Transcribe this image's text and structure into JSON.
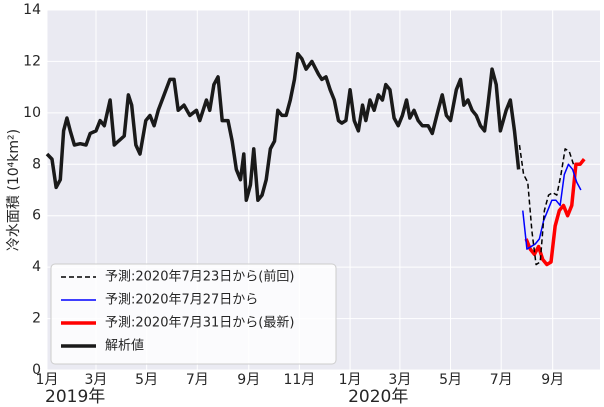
{
  "chart_data": {
    "type": "line",
    "ylabel": "冷水面積 (10⁴km²)",
    "xlim": [
      "2019-01-01",
      "2020-10-28"
    ],
    "xticks": [
      {
        "value": "2019-01-01",
        "label": "1月"
      },
      {
        "value": "2019-03-01",
        "label": "3月"
      },
      {
        "value": "2019-05-01",
        "label": "5月"
      },
      {
        "value": "2019-07-01",
        "label": "7月"
      },
      {
        "value": "2019-09-01",
        "label": "9月"
      },
      {
        "value": "2019-11-01",
        "label": "11月"
      },
      {
        "value": "2020-01-01",
        "label": "1月"
      },
      {
        "value": "2020-03-01",
        "label": "3月"
      },
      {
        "value": "2020-05-01",
        "label": "5月"
      },
      {
        "value": "2020-07-01",
        "label": "7月"
      },
      {
        "value": "2020-09-01",
        "label": "9月"
      }
    ],
    "year_labels": [
      {
        "value": "2019-01-01",
        "label": "2019年"
      },
      {
        "value": "2020-01-01",
        "label": "2020年"
      }
    ],
    "ylim": [
      0,
      14
    ],
    "yticks": [
      0,
      2,
      4,
      6,
      8,
      10,
      12,
      14
    ],
    "grid": true,
    "legend": "lower left",
    "series": [
      {
        "name": "予測:2020年7月23日から(前回)",
        "color": "#000000",
        "style": "dashed",
        "width": 1.5,
        "x": [
          "2020-07-23",
          "2020-07-28",
          "2020-08-02",
          "2020-08-07",
          "2020-08-12",
          "2020-08-17",
          "2020-08-22",
          "2020-08-27",
          "2020-09-01",
          "2020-09-06",
          "2020-09-11",
          "2020-09-16",
          "2020-09-21",
          "2020-09-26"
        ],
        "values": [
          8.75,
          7.6,
          7.3,
          5.4,
          4.1,
          4.2,
          6.2,
          6.8,
          6.9,
          6.8,
          7.6,
          8.6,
          8.5,
          8.0
        ]
      },
      {
        "name": "予測:2020年7月27日から",
        "color": "#0000ff",
        "style": "solid",
        "width": 1.5,
        "x": [
          "2020-07-27",
          "2020-08-01",
          "2020-08-06",
          "2020-08-11",
          "2020-08-16",
          "2020-08-21",
          "2020-08-26",
          "2020-08-31",
          "2020-09-05",
          "2020-09-10",
          "2020-09-15",
          "2020-09-20",
          "2020-09-25",
          "2020-09-30",
          "2020-10-05"
        ],
        "values": [
          6.2,
          4.7,
          4.8,
          4.9,
          5.1,
          5.8,
          6.2,
          6.6,
          6.6,
          6.4,
          7.6,
          8.0,
          7.8,
          7.3,
          7.0
        ]
      },
      {
        "name": "予測:2020年7月31日から(最新)",
        "color": "#ff0000",
        "style": "solid",
        "width": 3.5,
        "x": [
          "2020-07-31",
          "2020-08-05",
          "2020-08-10",
          "2020-08-15",
          "2020-08-20",
          "2020-08-25",
          "2020-08-30",
          "2020-09-04",
          "2020-09-09",
          "2020-09-14",
          "2020-09-19",
          "2020-09-24",
          "2020-09-29",
          "2020-10-04",
          "2020-10-09"
        ],
        "values": [
          5.1,
          4.7,
          4.5,
          4.8,
          4.3,
          4.1,
          4.2,
          5.6,
          6.2,
          6.4,
          6.0,
          6.4,
          8.0,
          8.0,
          8.2
        ]
      },
      {
        "name": "解析値",
        "color": "#1a1a1a",
        "style": "solid",
        "width": 3.5,
        "x": [
          "2019-01-01",
          "2019-01-07",
          "2019-01-12",
          "2019-01-17",
          "2019-01-21",
          "2019-01-25",
          "2019-01-29",
          "2019-02-03",
          "2019-02-10",
          "2019-02-17",
          "2019-02-22",
          "2019-03-01",
          "2019-03-06",
          "2019-03-11",
          "2019-03-18",
          "2019-03-23",
          "2019-03-28",
          "2019-04-04",
          "2019-04-09",
          "2019-04-13",
          "2019-04-18",
          "2019-04-23",
          "2019-04-30",
          "2019-05-05",
          "2019-05-10",
          "2019-05-15",
          "2019-05-22",
          "2019-05-29",
          "2019-06-03",
          "2019-06-08",
          "2019-06-15",
          "2019-06-22",
          "2019-06-30",
          "2019-07-04",
          "2019-07-12",
          "2019-07-16",
          "2019-07-21",
          "2019-07-26",
          "2019-07-31",
          "2019-08-07",
          "2019-08-12",
          "2019-08-17",
          "2019-08-22",
          "2019-08-26",
          "2019-08-29",
          "2019-09-03",
          "2019-09-07",
          "2019-09-12",
          "2019-09-17",
          "2019-09-22",
          "2019-09-27",
          "2019-10-02",
          "2019-10-06",
          "2019-10-11",
          "2019-10-16",
          "2019-10-21",
          "2019-10-26",
          "2019-10-30",
          "2019-11-04",
          "2019-11-09",
          "2019-11-16",
          "2019-11-24",
          "2019-11-28",
          "2019-12-03",
          "2019-12-08",
          "2019-12-13",
          "2019-12-18",
          "2019-12-22",
          "2019-12-27",
          "2020-01-01",
          "2020-01-06",
          "2020-01-11",
          "2020-01-16",
          "2020-01-20",
          "2020-01-25",
          "2020-01-30",
          "2020-02-04",
          "2020-02-09",
          "2020-02-13",
          "2020-02-18",
          "2020-02-23",
          "2020-02-28",
          "2020-03-04",
          "2020-03-09",
          "2020-03-13",
          "2020-03-18",
          "2020-03-23",
          "2020-03-28",
          "2020-04-04",
          "2020-04-09",
          "2020-04-16",
          "2020-04-21",
          "2020-04-26",
          "2020-05-01",
          "2020-05-08",
          "2020-05-13",
          "2020-05-17",
          "2020-05-22",
          "2020-05-27",
          "2020-06-01",
          "2020-06-06",
          "2020-06-11",
          "2020-06-15",
          "2020-06-20",
          "2020-06-25",
          "2020-06-30",
          "2020-07-07",
          "2020-07-12",
          "2020-07-17",
          "2020-07-22"
        ],
        "values": [
          8.4,
          8.2,
          7.1,
          7.4,
          9.3,
          9.8,
          9.3,
          8.75,
          8.8,
          8.75,
          9.2,
          9.3,
          9.7,
          9.5,
          10.5,
          8.75,
          8.9,
          9.1,
          10.7,
          10.3,
          8.75,
          8.4,
          9.7,
          9.9,
          9.5,
          10.1,
          10.7,
          11.3,
          11.3,
          10.1,
          10.3,
          9.9,
          10.1,
          9.7,
          10.5,
          10.1,
          11.1,
          11.4,
          9.7,
          9.7,
          8.9,
          7.8,
          7.4,
          8.4,
          6.6,
          7.2,
          8.6,
          6.6,
          6.8,
          7.4,
          8.6,
          8.9,
          10.1,
          9.9,
          9.9,
          10.5,
          11.3,
          12.3,
          12.1,
          11.7,
          12.0,
          11.5,
          11.3,
          11.4,
          10.9,
          10.5,
          9.7,
          9.6,
          9.7,
          10.9,
          9.7,
          9.3,
          10.3,
          9.7,
          10.5,
          10.1,
          10.7,
          10.5,
          11.1,
          10.9,
          9.8,
          9.5,
          9.9,
          10.5,
          9.8,
          10.1,
          9.7,
          9.5,
          9.5,
          9.2,
          10.1,
          10.7,
          9.9,
          9.7,
          10.9,
          11.3,
          10.3,
          10.5,
          10.1,
          9.9,
          9.5,
          9.3,
          10.3,
          11.7,
          11.1,
          9.3,
          10.1,
          10.5,
          9.3,
          7.8
        ]
      }
    ]
  }
}
